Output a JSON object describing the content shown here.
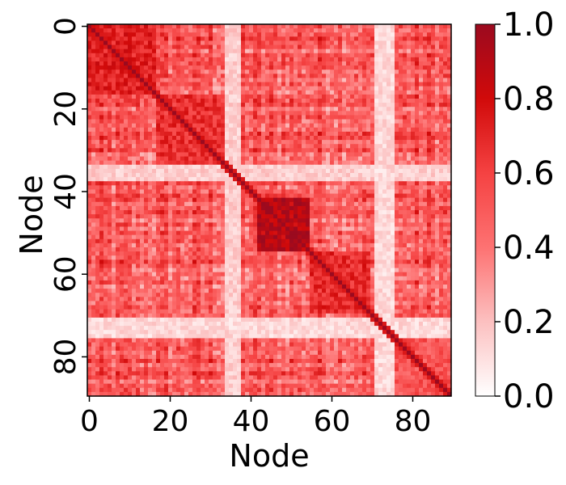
{
  "chart_data": {
    "type": "heatmap",
    "title": "",
    "xlabel": "Node",
    "ylabel": "Node",
    "n_nodes": 90,
    "x_ticks": [
      0,
      20,
      40,
      60,
      80
    ],
    "y_ticks": [
      0,
      20,
      40,
      60,
      80
    ],
    "colorbar": {
      "range": [
        0.0,
        1.0
      ],
      "ticks": [
        "0.0",
        "0.2",
        "0.4",
        "0.6",
        "0.8",
        "1.0"
      ],
      "colors": [
        "#ffffff",
        "#fcc0c0",
        "#fd7272",
        "#f54242",
        "#d10a0a",
        "#9b0a1f"
      ]
    },
    "blocks": [
      {
        "start": 0,
        "end": 17,
        "level": 0.72
      },
      {
        "start": 17,
        "end": 35,
        "level": 0.66
      },
      {
        "start": 35,
        "end": 42,
        "level": 0.48
      },
      {
        "start": 42,
        "end": 55,
        "level": 0.88
      },
      {
        "start": 55,
        "end": 70,
        "level": 0.68
      },
      {
        "start": 70,
        "end": 90,
        "level": 0.52
      }
    ],
    "baseline": 0.42,
    "diagonal": 1.0,
    "pale_bands": [
      {
        "start": 34,
        "end": 38,
        "level": 0.08
      },
      {
        "start": 71,
        "end": 76,
        "level": 0.05
      }
    ]
  }
}
